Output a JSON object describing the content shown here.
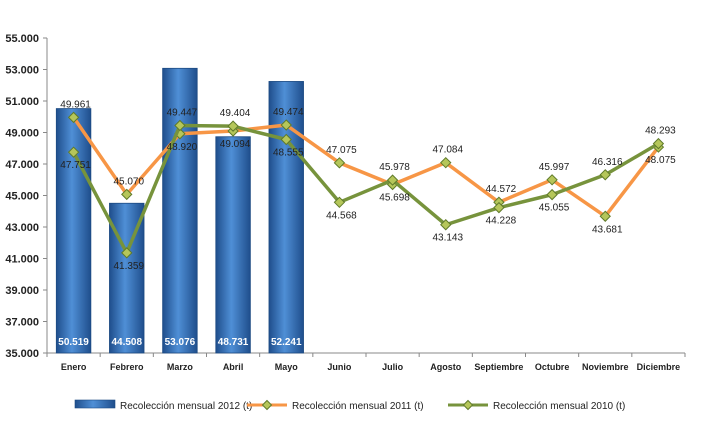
{
  "chart_data": {
    "type": "bar",
    "categories": [
      "Enero",
      "Febrero",
      "Marzo",
      "Abril",
      "Mayo",
      "Junio",
      "Julio",
      "Agosto",
      "Septiembre",
      "Octubre",
      "Noviembre",
      "Diciembre"
    ],
    "ylim": [
      35000,
      55000
    ],
    "y_ticks": [
      35000,
      37000,
      39000,
      41000,
      43000,
      45000,
      47000,
      49000,
      51000,
      53000,
      55000
    ],
    "y_tick_labels": [
      "35.000",
      "37.000",
      "39.000",
      "41.000",
      "43.000",
      "45.000",
      "47.000",
      "49.000",
      "51.000",
      "53.000",
      "55.000"
    ],
    "grid": false,
    "legend_position": "bottom",
    "series": [
      {
        "name": "Recolección mensual 2012 (t)",
        "kind": "bar",
        "color": "#2f6fb8",
        "values": [
          50519,
          44508,
          53076,
          48731,
          52241,
          null,
          null,
          null,
          null,
          null,
          null,
          null
        ],
        "labels": [
          "50.519",
          "44.508",
          "53.076",
          "48.731",
          "52.241",
          "",
          "",
          "",
          "",
          "",
          "",
          ""
        ]
      },
      {
        "name": "Recolección mensual 2011 (t)",
        "kind": "line",
        "color": "#f79646",
        "values": [
          49961,
          45070,
          48920,
          49094,
          49474,
          47075,
          45698,
          47084,
          44572,
          45997,
          43681,
          48075
        ],
        "labels": [
          "49.961",
          "45.070",
          "48.920",
          "49.094",
          "49.474",
          "47.075",
          "45.698",
          "47.084",
          "44.572",
          "45.997",
          "43.681",
          "48.075"
        ]
      },
      {
        "name": "Recolección mensual 2010 (t)",
        "kind": "line",
        "color": "#77933c",
        "values": [
          47751,
          41359,
          49447,
          49404,
          48555,
          44568,
          45978,
          43143,
          44228,
          45055,
          46316,
          48293
        ],
        "labels": [
          "47.751",
          "41.359",
          "49.447",
          "49.404",
          "48.555",
          "44.568",
          "45.978",
          "43.143",
          "44.228",
          "45.055",
          "46.316",
          "48.293"
        ]
      }
    ]
  }
}
